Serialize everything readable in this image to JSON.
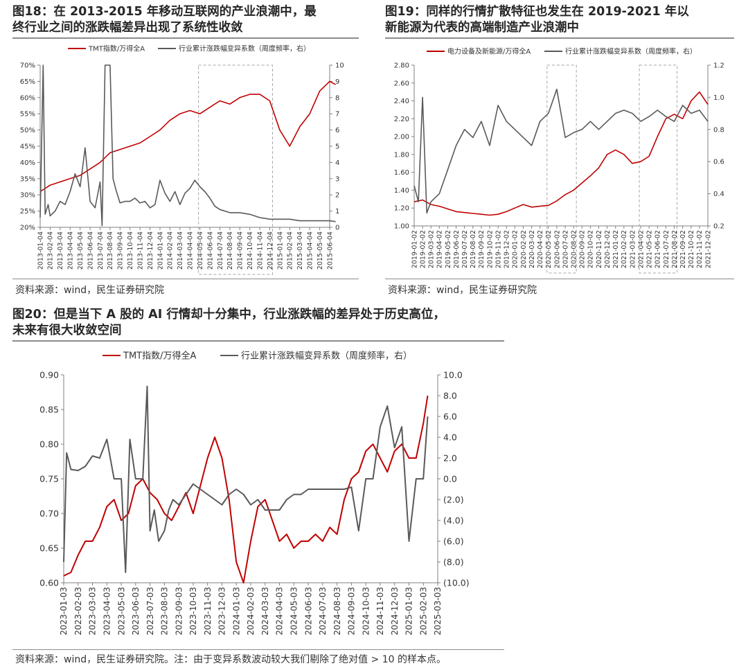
{
  "figures": [
    {
      "title_lines": [
        "图18：在 2013-2015 年移动互联网的产业浪潮中，最",
        "终行业之间的涨跌幅差异出现了系统性收敛"
      ],
      "source": "资料来源：wind，民生证券研究院"
    },
    {
      "title_lines": [
        "图19：同样的行情扩散特征也发生在 2019-2021 年以",
        "新能源为代表的高端制造产业浪潮中"
      ],
      "source": "资料来源：wind，民生证券研究院"
    },
    {
      "title_lines": [
        "图20：但是当下 A 股的 AI 行情却十分集中，行业涨跌幅的差异处于历史高位，",
        "未来有很大收敛空间"
      ],
      "source": "资料来源：wind，民生证券研究院。注：由于变异系数波动较大我们剔除了绝对值 > 10 的样本点。"
    }
  ],
  "colors": {
    "red": "#c00000",
    "gray": "#595959",
    "box": "#a6a6a6"
  },
  "chart_data": [
    {
      "type": "line",
      "legend": [
        "TMT指数/万得全A",
        "行业累计涨跌幅变异系数（周度频率，右）"
      ],
      "legend_placement": "top",
      "y_left_ticks": [
        "20%",
        "25%",
        "30%",
        "35%",
        "40%",
        "45%",
        "50%",
        "55%",
        "60%",
        "65%",
        "70%"
      ],
      "y_left_range": [
        0.2,
        0.7
      ],
      "y_right_ticks": [
        "0",
        "1",
        "2",
        "3",
        "4",
        "5",
        "6",
        "7",
        "8",
        "9",
        "10"
      ],
      "y_right_range": [
        0,
        10
      ],
      "x_ticks": [
        "2013-01-04",
        "2013-02-04",
        "2013-03-04",
        "2013-04-04",
        "2013-05-04",
        "2013-06-04",
        "2013-07-04",
        "2013-08-04",
        "2013-09-04",
        "2013-10-04",
        "2013-11-04",
        "2013-12-04",
        "2014-01-04",
        "2014-02-04",
        "2014-03-04",
        "2014-04-04",
        "2014-05-04",
        "2014-06-04",
        "2014-07-04",
        "2014-08-04",
        "2014-09-04",
        "2014-10-04",
        "2014-11-04",
        "2014-12-04",
        "2015-01-04",
        "2015-02-04",
        "2015-03-04",
        "2015-04-04",
        "2015-05-04",
        "2015-06-04"
      ],
      "highlight_range": [
        "2014-05-04",
        "2014-12-04"
      ],
      "series": [
        {
          "name": "TMT指数/万得全A",
          "axis": "left",
          "color": "#c00000",
          "x": [
            0,
            1,
            2,
            3,
            4,
            5,
            6,
            7,
            8,
            9,
            10,
            11,
            12,
            13,
            14,
            15,
            16,
            17,
            18,
            19,
            20,
            21,
            22,
            23,
            24,
            25,
            26,
            27,
            28,
            29,
            29.6
          ],
          "values": [
            0.31,
            0.33,
            0.34,
            0.35,
            0.36,
            0.38,
            0.4,
            0.43,
            0.44,
            0.45,
            0.46,
            0.48,
            0.5,
            0.53,
            0.55,
            0.56,
            0.55,
            0.57,
            0.59,
            0.58,
            0.6,
            0.61,
            0.61,
            0.59,
            0.5,
            0.45,
            0.51,
            0.55,
            0.62,
            0.65,
            0.64
          ]
        },
        {
          "name": "行业累计涨跌幅变异系数（周度频率，右）",
          "axis": "right",
          "color": "#595959",
          "x": [
            0,
            0.3,
            0.5,
            0.8,
            1,
            1.5,
            2,
            2.5,
            3,
            3.5,
            4,
            4.5,
            5,
            5.5,
            6,
            6.2,
            6.5,
            7,
            7.3,
            7.6,
            8,
            8.5,
            9,
            9.5,
            10,
            10.5,
            11,
            11.5,
            12,
            12.5,
            13,
            13.5,
            14,
            14.5,
            15,
            15.5,
            16,
            16.5,
            17,
            17.5,
            18,
            19,
            20,
            21,
            22,
            23,
            24,
            25,
            26,
            27,
            28,
            29,
            29.6
          ],
          "values": [
            0.6,
            10,
            0.8,
            1.4,
            0.7,
            1,
            1.6,
            1.4,
            2.2,
            3.3,
            2.5,
            4.9,
            1.6,
            1.2,
            2.8,
            0.1,
            10,
            10,
            3,
            2.3,
            1.5,
            1.6,
            1.6,
            1.8,
            1.5,
            1.6,
            1.2,
            1.4,
            2.9,
            2.1,
            1.6,
            2.2,
            1.4,
            2.1,
            2.4,
            2.9,
            2.5,
            2.2,
            1.8,
            1.3,
            1.1,
            0.9,
            0.9,
            0.8,
            0.6,
            0.5,
            0.5,
            0.5,
            0.4,
            0.4,
            0.4,
            0.4,
            0.35
          ]
        }
      ]
    },
    {
      "type": "line",
      "legend": [
        "电力设备及新能源/万得全A",
        "行业累计涨跌幅变异系数（周度频率，右）"
      ],
      "legend_placement": "top",
      "y_left_ticks": [
        "1.00",
        "1.20",
        "1.40",
        "1.60",
        "1.80",
        "2.00",
        "2.20",
        "2.40",
        "2.60",
        "2.80"
      ],
      "y_left_range": [
        1.0,
        2.8
      ],
      "y_right_ticks": [
        "0.2",
        "0.4",
        "0.6",
        "0.8",
        "1.0",
        "1.2"
      ],
      "y_right_range": [
        0.2,
        1.2
      ],
      "x_ticks": [
        "2019-01-02",
        "2019-02-02",
        "2019-03-02",
        "2019-04-02",
        "2019-05-02",
        "2019-06-02",
        "2019-07-02",
        "2019-08-02",
        "2019-09-02",
        "2019-10-02",
        "2019-11-02",
        "2019-12-02",
        "2020-01-02",
        "2020-02-02",
        "2020-03-02",
        "2020-04-02",
        "2020-05-02",
        "2020-06-02",
        "2020-07-02",
        "2020-08-02",
        "2020-09-02",
        "2020-10-02",
        "2020-11-02",
        "2020-12-02",
        "2021-01-02",
        "2021-02-02",
        "2021-03-02",
        "2021-04-02",
        "2021-05-02",
        "2021-06-02",
        "2021-07-02",
        "2021-08-02",
        "2021-09-02",
        "2021-10-02",
        "2021-11-02",
        "2021-12-02"
      ],
      "highlight_ranges": [
        [
          "2020-05-02",
          "2020-08-02"
        ],
        [
          "2021-04-02",
          "2021-08-02"
        ]
      ],
      "series": [
        {
          "name": "电力设备及新能源/万得全A",
          "axis": "left",
          "color": "#c00000",
          "x": [
            0,
            1,
            2,
            3,
            4,
            5,
            6,
            7,
            8,
            9,
            10,
            11,
            12,
            13,
            14,
            15,
            16,
            17,
            18,
            19,
            20,
            21,
            22,
            23,
            24,
            25,
            26,
            27,
            28,
            29,
            30,
            31,
            32,
            33,
            34,
            35
          ],
          "values": [
            1.27,
            1.29,
            1.24,
            1.22,
            1.19,
            1.16,
            1.15,
            1.14,
            1.13,
            1.12,
            1.13,
            1.16,
            1.2,
            1.24,
            1.21,
            1.22,
            1.23,
            1.28,
            1.35,
            1.4,
            1.48,
            1.56,
            1.65,
            1.8,
            1.85,
            1.8,
            1.7,
            1.72,
            1.78,
            2.0,
            2.2,
            2.25,
            2.2,
            2.4,
            2.5,
            2.36
          ]
        },
        {
          "name": "行业累计涨跌幅变异系数（周度频率，右）",
          "axis": "right",
          "color": "#595959",
          "x": [
            0,
            0.5,
            1,
            1.5,
            2,
            3,
            4,
            5,
            6,
            7,
            8,
            9,
            10,
            11,
            12,
            13,
            14,
            15,
            16,
            17,
            17.5,
            18,
            19,
            20,
            21,
            22,
            23,
            24,
            25,
            26,
            27,
            28,
            29,
            30,
            31,
            32,
            33,
            34,
            35
          ],
          "values": [
            0.45,
            0.35,
            1.0,
            0.28,
            0.35,
            0.4,
            0.55,
            0.7,
            0.8,
            0.75,
            0.85,
            0.7,
            0.95,
            0.85,
            0.8,
            0.75,
            0.7,
            0.85,
            0.9,
            1.05,
            0.9,
            0.75,
            0.78,
            0.8,
            0.85,
            0.8,
            0.85,
            0.9,
            0.92,
            0.9,
            0.85,
            0.88,
            0.92,
            0.88,
            0.85,
            0.95,
            0.9,
            0.92,
            0.85
          ]
        }
      ]
    },
    {
      "type": "line",
      "legend": [
        "TMT指数/万得全A",
        "行业累计涨跌幅变异系数（周度频率，右）"
      ],
      "legend_placement": "top",
      "y_left_ticks": [
        "0.60",
        "0.65",
        "0.70",
        "0.75",
        "0.80",
        "0.85",
        "0.90"
      ],
      "y_left_range": [
        0.6,
        0.9
      ],
      "y_right_ticks": [
        "(10.0)",
        "(8.0)",
        "(6.0)",
        "(4.0)",
        "(2.0)",
        "0.0",
        "2.0",
        "4.0",
        "6.0",
        "8.0",
        "10.0"
      ],
      "y_right_range": [
        -10,
        10
      ],
      "x_ticks": [
        "2023-01-03",
        "2023-02-03",
        "2023-03-03",
        "2023-04-03",
        "2023-05-03",
        "2023-06-03",
        "2023-07-03",
        "2023-08-03",
        "2023-09-03",
        "2023-10-03",
        "2023-11-03",
        "2023-12-03",
        "2024-01-03",
        "2024-02-03",
        "2024-03-03",
        "2024-04-03",
        "2024-05-03",
        "2024-06-03",
        "2024-07-03",
        "2024-08-03",
        "2024-09-03",
        "2024-10-03",
        "2024-11-03",
        "2024-12-03",
        "2025-01-03",
        "2025-02-03",
        "2025-03-03"
      ],
      "series": [
        {
          "name": "TMT指数/万得全A",
          "axis": "left",
          "color": "#c00000",
          "x": [
            0,
            0.5,
            1,
            1.5,
            2,
            2.5,
            3,
            3.5,
            4,
            4.5,
            5,
            5.5,
            6,
            6.5,
            7,
            7.5,
            8,
            8.5,
            9,
            9.5,
            10,
            10.5,
            11,
            11.5,
            12,
            12.5,
            13,
            13.5,
            14,
            14.5,
            15,
            15.5,
            16,
            16.5,
            17,
            17.5,
            18,
            18.5,
            19,
            19.5,
            20,
            20.5,
            21,
            21.5,
            22,
            22.5,
            23,
            23.5,
            24,
            24.5,
            25,
            25.3
          ],
          "values": [
            0.61,
            0.615,
            0.64,
            0.66,
            0.66,
            0.68,
            0.71,
            0.72,
            0.69,
            0.7,
            0.74,
            0.75,
            0.73,
            0.72,
            0.7,
            0.69,
            0.71,
            0.73,
            0.7,
            0.74,
            0.78,
            0.81,
            0.78,
            0.72,
            0.63,
            0.6,
            0.66,
            0.71,
            0.72,
            0.69,
            0.66,
            0.67,
            0.65,
            0.66,
            0.66,
            0.67,
            0.66,
            0.68,
            0.67,
            0.72,
            0.75,
            0.76,
            0.79,
            0.8,
            0.78,
            0.76,
            0.79,
            0.8,
            0.78,
            0.78,
            0.83,
            0.87
          ]
        },
        {
          "name": "行业累计涨跌幅变异系数（周度频率，右）",
          "axis": "right",
          "color": "#595959",
          "x": [
            0,
            0.2,
            0.5,
            1,
            1.5,
            2,
            2.5,
            3,
            3.5,
            4,
            4.3,
            4.6,
            5,
            5.5,
            5.8,
            6,
            6.3,
            6.6,
            7,
            7.3,
            7.6,
            8,
            8.5,
            9,
            9.5,
            10,
            10.5,
            11,
            11.5,
            12,
            12.5,
            13,
            13.5,
            14,
            14.5,
            15,
            15.5,
            16,
            16.5,
            17,
            17.5,
            18,
            18.5,
            19,
            19.5,
            20,
            20.5,
            21,
            21.5,
            22,
            22.5,
            23,
            23.5,
            24,
            24.5,
            25,
            25.3
          ],
          "values": [
            -8,
            2.5,
            0.9,
            0.8,
            1.2,
            2.2,
            2.0,
            3.8,
            0.0,
            0.0,
            -9,
            3.8,
            0.0,
            0.0,
            8.9,
            -5,
            -3,
            -6,
            -5,
            -3,
            -2,
            -2.5,
            -1.5,
            -0.5,
            -1,
            -1.5,
            -2,
            -2.5,
            -1.5,
            -1,
            -1.5,
            -2.5,
            -2,
            -3,
            -3,
            -3,
            -2,
            -1.5,
            -1.5,
            -1,
            -1,
            -1,
            -1,
            -1,
            -1,
            -0.8,
            -5,
            0,
            0,
            5,
            7,
            3,
            5,
            -6,
            0,
            0,
            6
          ]
        }
      ]
    }
  ]
}
